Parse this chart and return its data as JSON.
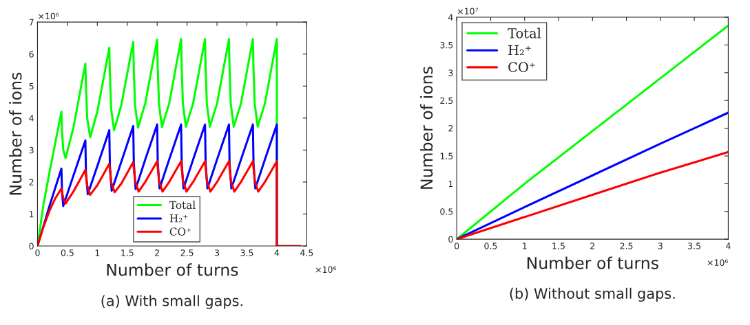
{
  "chart_data": [
    {
      "type": "line",
      "xlabel": "Number of turns",
      "ylabel": "Number of ions",
      "xlim": [
        0,
        4.5
      ],
      "xticks": [
        0,
        0.5,
        1,
        1.5,
        2,
        2.5,
        3,
        3.5,
        4,
        4.5
      ],
      "ylim": [
        0,
        7
      ],
      "yticks": [
        0,
        1,
        2,
        3,
        4,
        5,
        6,
        7
      ],
      "grid": false,
      "legend": "bottom",
      "line_style": "solid",
      "annotations": [
        "×10⁶",
        "×10⁶",
        "(a) With small gaps."
      ],
      "series": [
        {
          "name": "Total",
          "color": "#00ff00",
          "x": [
            0,
            0.1,
            0.2,
            0.3,
            0.4,
            0.41,
            0.43,
            0.47,
            0.6,
            0.8,
            0.81,
            0.83,
            0.88,
            1.0,
            1.2,
            1.21,
            1.23,
            1.28,
            1.4,
            1.6,
            1.61,
            1.63,
            1.68,
            1.8,
            2.0,
            2.01,
            2.03,
            2.08,
            2.2,
            2.4,
            2.41,
            2.43,
            2.48,
            2.6,
            2.8,
            2.81,
            2.83,
            2.88,
            3.0,
            3.2,
            3.21,
            3.23,
            3.28,
            3.4,
            3.6,
            3.61,
            3.63,
            3.68,
            3.8,
            4.0,
            4.0
          ],
          "values": [
            0,
            1.3,
            2.3,
            3.25,
            4.2,
            3.6,
            3.0,
            2.75,
            3.7,
            5.7,
            5.0,
            4.0,
            3.4,
            4.2,
            6.2,
            5.4,
            4.3,
            3.62,
            4.4,
            6.38,
            5.5,
            4.4,
            3.7,
            4.45,
            6.45,
            5.55,
            4.45,
            3.72,
            4.45,
            6.47,
            5.55,
            4.45,
            3.73,
            4.45,
            6.47,
            5.55,
            4.45,
            3.73,
            4.45,
            6.47,
            5.55,
            4.45,
            3.73,
            4.45,
            6.47,
            5.55,
            4.45,
            3.73,
            4.45,
            6.47,
            0
          ]
        },
        {
          "name": "H₂⁺",
          "color": "#0000ff",
          "x": [
            0,
            0.2,
            0.4,
            0.41,
            0.43,
            0.6,
            0.8,
            0.81,
            0.84,
            1.0,
            1.2,
            1.21,
            1.24,
            1.4,
            1.6,
            1.61,
            1.64,
            1.8,
            2.0,
            2.01,
            2.04,
            2.2,
            2.4,
            2.41,
            2.44,
            2.6,
            2.8,
            2.81,
            2.84,
            3.0,
            3.2,
            3.21,
            3.24,
            3.4,
            3.6,
            3.61,
            3.64,
            3.8,
            4.0,
            4.0
          ],
          "values": [
            0,
            1.25,
            2.42,
            1.7,
            1.25,
            2.2,
            3.3,
            2.3,
            1.62,
            2.5,
            3.62,
            2.5,
            1.73,
            2.63,
            3.75,
            2.6,
            1.78,
            2.7,
            3.8,
            2.6,
            1.8,
            2.7,
            3.8,
            2.6,
            1.8,
            2.7,
            3.8,
            2.6,
            1.8,
            2.7,
            3.8,
            2.6,
            1.8,
            2.7,
            3.8,
            2.6,
            1.8,
            2.7,
            3.8,
            0
          ]
        },
        {
          "name": "CO⁺",
          "color": "#ff0000",
          "x": [
            0,
            0.1,
            0.2,
            0.3,
            0.4,
            0.43,
            0.47,
            0.6,
            0.8,
            0.83,
            0.88,
            1.0,
            1.2,
            1.23,
            1.29,
            1.4,
            1.6,
            1.63,
            1.69,
            1.8,
            2.0,
            2.03,
            2.09,
            2.2,
            2.4,
            2.43,
            2.49,
            2.6,
            2.8,
            2.83,
            2.89,
            3.0,
            3.2,
            3.23,
            3.29,
            3.4,
            3.6,
            3.63,
            3.69,
            3.8,
            4.0,
            4.0,
            4.01,
            4.4
          ],
          "values": [
            0,
            0.6,
            1.1,
            1.5,
            1.8,
            1.5,
            1.33,
            1.7,
            2.38,
            1.9,
            1.6,
            1.9,
            2.57,
            2.0,
            1.68,
            1.95,
            2.62,
            2.05,
            1.7,
            2.0,
            2.65,
            2.05,
            1.7,
            2.0,
            2.65,
            2.05,
            1.7,
            2.0,
            2.65,
            2.05,
            1.7,
            2.0,
            2.65,
            2.05,
            1.7,
            2.0,
            2.65,
            2.05,
            1.7,
            2.0,
            2.65,
            0,
            0,
            0
          ]
        }
      ]
    },
    {
      "type": "line",
      "xlabel": "Number of turns",
      "ylabel": "Number of ions",
      "xlim": [
        0,
        4
      ],
      "xticks": [
        0,
        0.5,
        1,
        1.5,
        2,
        2.5,
        3,
        3.5,
        4
      ],
      "ylim": [
        0,
        4
      ],
      "yticks": [
        0,
        0.5,
        1,
        1.5,
        2,
        2.5,
        3,
        3.5,
        4
      ],
      "grid": false,
      "legend": "top left",
      "line_style": "solid",
      "annotations": [
        "×10⁷",
        "×10⁶",
        "(b) Without small gaps."
      ],
      "series": [
        {
          "name": "Total",
          "color": "#00ff00",
          "x": [
            0,
            1,
            2,
            3,
            4
          ],
          "values": [
            0,
            1.0,
            1.95,
            2.9,
            3.85
          ]
        },
        {
          "name": "H₂⁺",
          "color": "#0000ff",
          "x": [
            0,
            1,
            2,
            3,
            4
          ],
          "values": [
            0,
            0.58,
            1.15,
            1.72,
            2.28
          ]
        },
        {
          "name": "CO⁺",
          "color": "#ff0000",
          "x": [
            0,
            1,
            2,
            3,
            4
          ],
          "values": [
            0,
            0.4,
            0.8,
            1.2,
            1.57
          ]
        }
      ]
    }
  ]
}
